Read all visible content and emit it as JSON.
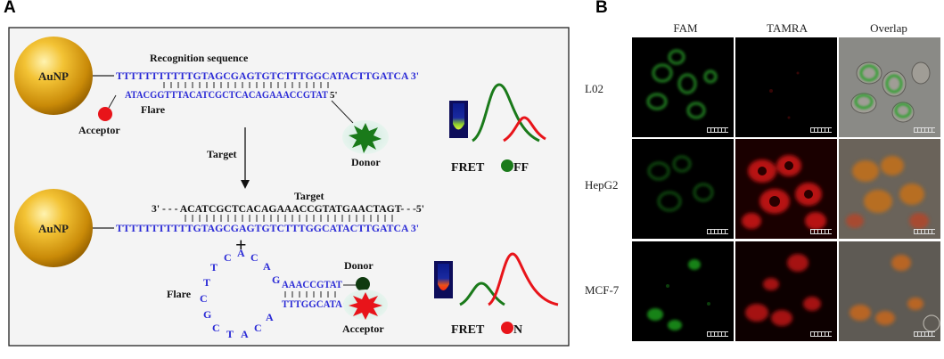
{
  "panel_a": {
    "label": "A",
    "auNP": "AuNP",
    "recognition_title": "Recognition sequence",
    "strand_top": "TTTTTTTTTTTGTAGCGAGTGTCTTTGGCATACTTGATCA 3'",
    "strand_flare": "ATACGGTTTACATCGCTCACAGAAACCGTAT",
    "flare_5prime": "5'",
    "flare_label": "Flare",
    "acceptor_label": "Acceptor",
    "donor_label": "Donor",
    "arrow_label": "Target",
    "fret_off": {
      "prefix": "FRET ",
      "suffix": "FF"
    },
    "target_title": "Target",
    "target_strand": "3' - - - ACATCGCTCACAGAAACCGTATGAACTAGT- - -5'",
    "strand_bottom": "TTTTTTTTTTTGTAGCGAGTGTCTTTGGCATACTTGATCA 3'",
    "plus": "+",
    "flare2_label": "Flare",
    "loop_letters": [
      "T",
      "C",
      "A",
      "C",
      "A",
      "G",
      "T",
      "C",
      "G",
      "C",
      "T",
      "A",
      "C",
      "A"
    ],
    "hairpin_top": "AAACCGTAT",
    "hairpin_bottom": "TTTGGCATA",
    "donor2_label": "Donor",
    "acceptor2_label": "Acceptor",
    "fret_on": {
      "prefix": "FRET ",
      "suffix": "N"
    },
    "colors": {
      "dna": "#2b2bd6",
      "gold": "#e0a51a",
      "green": "#1a7a1a",
      "red": "#e8141a"
    }
  },
  "panel_b": {
    "label": "B",
    "columns": [
      "FAM",
      "TAMRA",
      "Overlap"
    ],
    "rows": [
      "L02",
      "HepG2",
      "MCF-7"
    ]
  }
}
